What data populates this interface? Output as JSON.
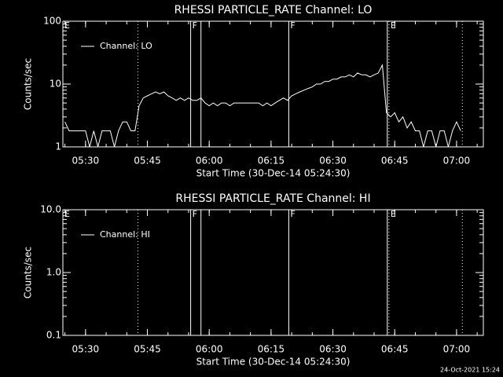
{
  "chart_data": [
    {
      "type": "line",
      "title": "RHESSI PARTICLE_RATE Channel: LO",
      "x_label": "Start Time (30-Dec-14 05:24:30)",
      "y_label": "Counts/sec",
      "ylog": true,
      "ylim": [
        1,
        100
      ],
      "yticks": [
        1,
        10,
        100
      ],
      "xlim": [
        324.5,
        426.5
      ],
      "xticks": [
        {
          "value": 330,
          "label": "05:30"
        },
        {
          "value": 345,
          "label": "05:45"
        },
        {
          "value": 360,
          "label": "06:00"
        },
        {
          "value": 375,
          "label": "06:15"
        },
        {
          "value": 390,
          "label": "06:30"
        },
        {
          "value": 405,
          "label": "06:45"
        },
        {
          "value": 420,
          "label": "07:00"
        }
      ],
      "legend": "upper left",
      "lines": [
        {
          "x": 342.7,
          "style": "dotted"
        },
        {
          "x": 355.5,
          "style": "solid"
        },
        {
          "x": 358.0,
          "style": "solid"
        },
        {
          "x": 379.3,
          "style": "solid"
        },
        {
          "x": 403.2,
          "style": "solid"
        },
        {
          "x": 403.6,
          "style": "dotted"
        },
        {
          "x": 421.4,
          "style": "dotted"
        }
      ],
      "flags": [
        {
          "x": 324.5,
          "label": "E"
        },
        {
          "x": 355.5,
          "label": "F"
        },
        {
          "x": 379.3,
          "label": "F"
        },
        {
          "x": 403.6,
          "label": "E"
        }
      ],
      "series": [
        {
          "name": "Channel: LO",
          "color": "#ffffff",
          "x": [
            325,
            326,
            327,
            328,
            329,
            330,
            331,
            332,
            333,
            334,
            335,
            336,
            337,
            338,
            339,
            340,
            341,
            342,
            343,
            344,
            345,
            346,
            347,
            348,
            349,
            350,
            351,
            352,
            353,
            354,
            355,
            356,
            357,
            358,
            359,
            360,
            361,
            362,
            363,
            364,
            365,
            366,
            367,
            368,
            369,
            370,
            371,
            372,
            373,
            374,
            375,
            376,
            377,
            378,
            379,
            380,
            381,
            382,
            383,
            384,
            385,
            386,
            387,
            388,
            389,
            390,
            391,
            392,
            393,
            394,
            395,
            396,
            397,
            398,
            399,
            400,
            401,
            402,
            403,
            404,
            405,
            406,
            407,
            408,
            409,
            410,
            411,
            412,
            413,
            414,
            415,
            416,
            417,
            418,
            419,
            420,
            421
          ],
          "values": [
            2.5,
            1.8,
            1.8,
            1.8,
            1.8,
            1.8,
            1.0,
            1.8,
            1.0,
            1.8,
            1.8,
            1.8,
            1.0,
            1.8,
            2.5,
            2.5,
            1.8,
            1.8,
            4.5,
            6.0,
            6.5,
            7.0,
            7.5,
            7.0,
            7.5,
            6.5,
            6.0,
            5.5,
            6.0,
            5.5,
            6.0,
            5.5,
            5.5,
            6.0,
            5.0,
            4.5,
            5.0,
            4.5,
            5.0,
            5.0,
            4.5,
            5.0,
            5.0,
            5.0,
            5.0,
            5.0,
            5.0,
            5.0,
            4.5,
            5.0,
            4.5,
            5.0,
            5.5,
            6.0,
            5.5,
            6.5,
            7.0,
            7.5,
            8.0,
            8.5,
            9.0,
            10,
            10,
            11,
            11,
            12,
            12,
            13,
            13,
            14,
            13,
            15,
            14,
            14,
            13,
            14,
            15,
            20,
            3.5,
            3.0,
            3.5,
            2.5,
            3.0,
            2.0,
            2.5,
            1.8,
            1.8,
            1.0,
            1.8,
            1.8,
            1.0,
            1.8,
            1.8,
            1.0,
            1.8,
            2.5,
            1.8
          ]
        }
      ]
    },
    {
      "type": "line",
      "title": "RHESSI PARTICLE_RATE Channel: HI",
      "x_label": "Start Time (30-Dec-14 05:24:30)",
      "y_label": "Counts/sec",
      "ylog": true,
      "ylim": [
        0.1,
        10
      ],
      "yticks": [
        0.1,
        {
          "value": 1,
          "label": "1.0"
        },
        {
          "value": 10,
          "label": "10.0"
        }
      ],
      "xlim": [
        324.5,
        426.5
      ],
      "xticks": [
        {
          "value": 330,
          "label": "05:30"
        },
        {
          "value": 345,
          "label": "05:45"
        },
        {
          "value": 360,
          "label": "06:00"
        },
        {
          "value": 375,
          "label": "06:15"
        },
        {
          "value": 390,
          "label": "06:30"
        },
        {
          "value": 405,
          "label": "06:45"
        },
        {
          "value": 420,
          "label": "07:00"
        }
      ],
      "legend": "upper left",
      "lines": [
        {
          "x": 342.7,
          "style": "dotted"
        },
        {
          "x": 355.5,
          "style": "solid"
        },
        {
          "x": 358.0,
          "style": "solid"
        },
        {
          "x": 379.3,
          "style": "solid"
        },
        {
          "x": 403.2,
          "style": "solid"
        },
        {
          "x": 403.6,
          "style": "dotted"
        },
        {
          "x": 421.4,
          "style": "dotted"
        }
      ],
      "flags": [
        {
          "x": 324.5,
          "label": "E"
        },
        {
          "x": 355.5,
          "label": "F"
        },
        {
          "x": 379.3,
          "label": "F"
        },
        {
          "x": 403.6,
          "label": "E"
        }
      ],
      "series": [
        {
          "name": "Channel: HI",
          "color": "#ffffff"
        }
      ]
    }
  ],
  "footer": "24-Oct-2021 15:24"
}
